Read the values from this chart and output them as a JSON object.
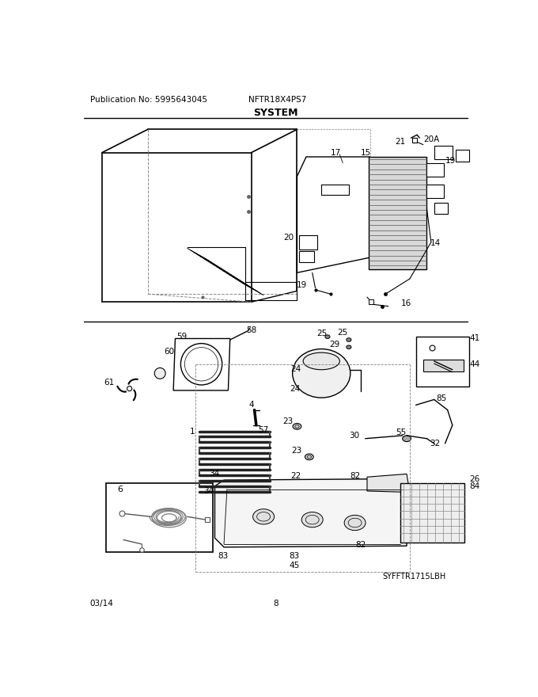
{
  "title": "SYSTEM",
  "publication": "Publication No: 5995643045",
  "model": "NFTR18X4PS7",
  "date": "03/14",
  "page": "8",
  "watermark": "SYFFTR1715LBH",
  "bg_color": "#ffffff",
  "line_color": "#000000"
}
